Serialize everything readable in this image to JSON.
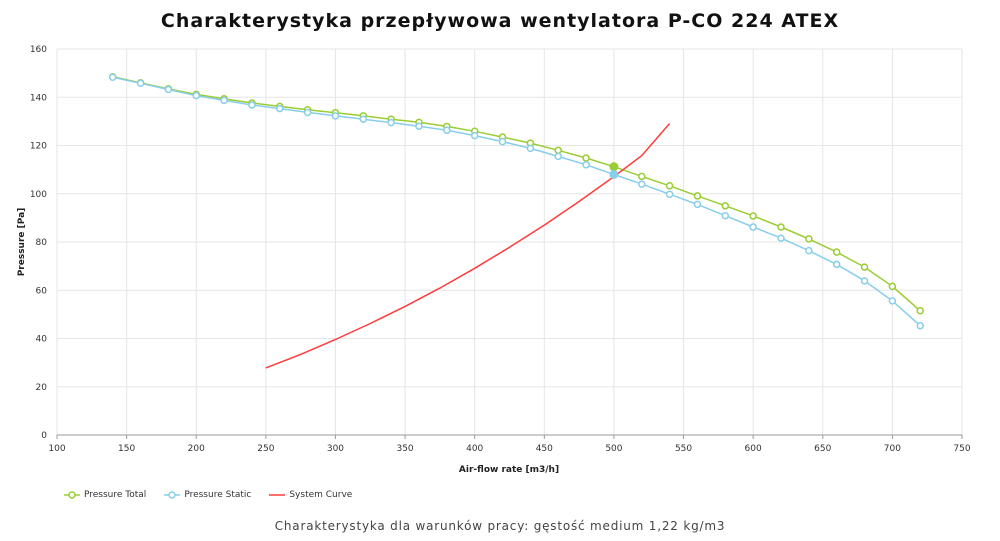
{
  "title": "Charakterystyka przepływowa wentylatora P-CO 224 ATEX",
  "subtitle": "Charakterystyka dla warunków pracy: gęstość medium 1,22 kg/m3",
  "colors": {
    "total": "#9ACD32",
    "static": "#87CEEB",
    "system": "#FF3B3B",
    "grid": "#e6e6e6",
    "axis": "#999999"
  },
  "chart_data": {
    "type": "line",
    "xlabel": "Air-flow rate [m3/h]",
    "ylabel": "Pressure [Pa]",
    "xlim": [
      100,
      750
    ],
    "ylim": [
      0,
      160
    ],
    "x_ticks": [
      100,
      150,
      200,
      250,
      300,
      350,
      400,
      450,
      500,
      550,
      600,
      650,
      700,
      750
    ],
    "y_ticks": [
      0,
      20,
      40,
      60,
      80,
      100,
      120,
      140,
      160
    ],
    "grid": true,
    "legend_position": "bottom-left",
    "series": [
      {
        "name": "Pressure Total",
        "color": "#9ACD32",
        "marker": "open-circle",
        "x": [
          140,
          160,
          180,
          200,
          220,
          240,
          260,
          280,
          300,
          320,
          340,
          360,
          380,
          400,
          420,
          440,
          460,
          480,
          500,
          520,
          540,
          560,
          580,
          600,
          620,
          640,
          660,
          680,
          700,
          720
        ],
        "y": [
          148.5,
          146,
          143.5,
          141.2,
          139.4,
          137.6,
          136.2,
          134.8,
          133.6,
          132.3,
          130.9,
          129.6,
          127.9,
          125.9,
          123.5,
          121,
          118,
          114.8,
          111.2,
          107.2,
          103.3,
          99.1,
          95,
          90.8,
          86.2,
          81.3,
          75.8,
          69.6,
          61.6,
          51.5
        ]
      },
      {
        "name": "Pressure Static",
        "color": "#87CEEB",
        "marker": "open-circle",
        "x": [
          140,
          160,
          180,
          200,
          220,
          240,
          260,
          280,
          300,
          320,
          340,
          360,
          380,
          400,
          420,
          440,
          460,
          480,
          500,
          520,
          540,
          560,
          580,
          600,
          620,
          640,
          660,
          680,
          700,
          720
        ],
        "y": [
          148.3,
          145.8,
          143.2,
          140.7,
          138.7,
          136.8,
          135.3,
          133.7,
          132.3,
          130.9,
          129.5,
          128,
          126.3,
          124.1,
          121.6,
          118.8,
          115.5,
          112,
          108,
          104,
          99.8,
          95.6,
          90.9,
          86.2,
          81.6,
          76.4,
          70.7,
          63.9,
          55.6,
          45.3
        ]
      },
      {
        "name": "System Curve",
        "color": "#FF3B3B",
        "marker": "none",
        "x": [
          250,
          275,
          300,
          325,
          350,
          375,
          400,
          425,
          450,
          475,
          500,
          520,
          540
        ],
        "y": [
          27.8,
          33.4,
          39.6,
          46.2,
          53.3,
          60.9,
          69.1,
          77.8,
          87.0,
          96.8,
          107.1,
          115.8,
          129.1
        ]
      }
    ],
    "operating_points": [
      {
        "series": "Pressure Total",
        "x": 500,
        "y": 111.2
      },
      {
        "series": "Pressure Static",
        "x": 500,
        "y": 108
      }
    ]
  }
}
